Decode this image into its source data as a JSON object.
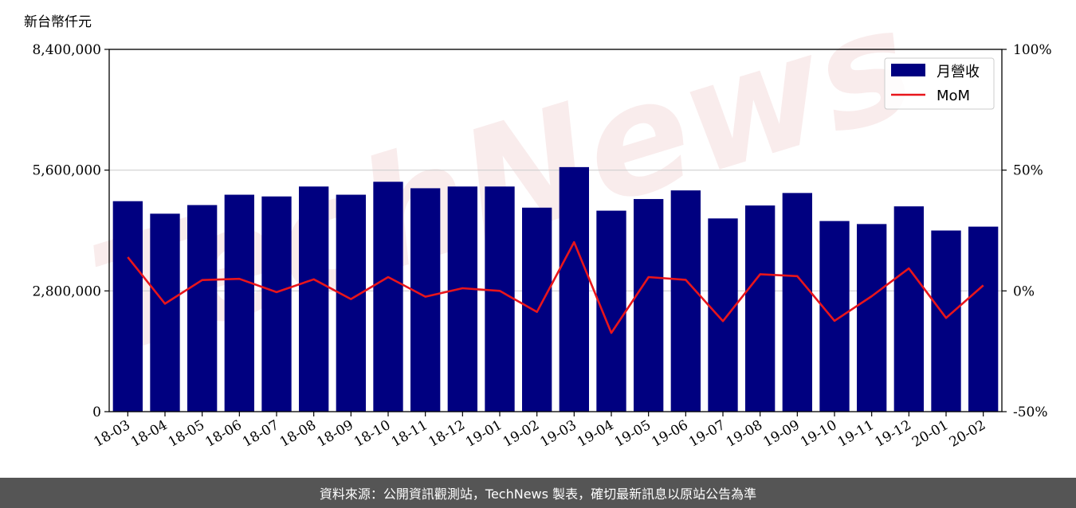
{
  "chart_data": {
    "type": "bar",
    "y_unit_label": "新台幣仟元",
    "categories": [
      "18-03",
      "18-04",
      "18-05",
      "18-06",
      "18-07",
      "18-08",
      "18-09",
      "18-10",
      "18-11",
      "18-12",
      "19-01",
      "19-02",
      "19-03",
      "19-04",
      "19-05",
      "19-06",
      "19-07",
      "19-08",
      "19-09",
      "19-10",
      "19-11",
      "19-12",
      "20-01",
      "20-02"
    ],
    "series": [
      {
        "name": "月營收",
        "axis": "left",
        "color": "#000080",
        "values": [
          4880000,
          4590000,
          4790000,
          5030000,
          4990000,
          5220000,
          5030000,
          5330000,
          5180000,
          5220000,
          5220000,
          4730000,
          5670000,
          4660000,
          4930000,
          5130000,
          4480000,
          4780000,
          5070000,
          4420000,
          4350000,
          4760000,
          4200000,
          4290000
        ]
      },
      {
        "name": "MoM",
        "axis": "right",
        "color": "#e8151b",
        "values": [
          14,
          -5.3,
          4.5,
          5,
          -0.5,
          4.8,
          -3.4,
          5.7,
          -2.4,
          1.1,
          0,
          -8.7,
          20.2,
          -17.4,
          5.7,
          4.6,
          -12.5,
          6.9,
          6.1,
          -12.4,
          -2.2,
          9.3,
          -11.2,
          2.3
        ]
      }
    ],
    "y_left": {
      "min": 0,
      "max": 8400000,
      "ticks": [
        "0",
        "2,800,000",
        "5,600,000",
        "8,400,000"
      ],
      "tick_values": [
        0,
        2800000,
        5600000,
        8400000
      ]
    },
    "y_right": {
      "min": -50,
      "max": 100,
      "ticks": [
        "-50%",
        "0%",
        "50%",
        "100%"
      ],
      "tick_values": [
        -50,
        0,
        50,
        100
      ]
    },
    "grid": "horizontal",
    "legend_position": "top-right",
    "watermark": "TechNews"
  },
  "footer": {
    "text": "資料來源：公開資訊觀測站，TechNews 製表，確切最新訊息以原站公告為準"
  }
}
